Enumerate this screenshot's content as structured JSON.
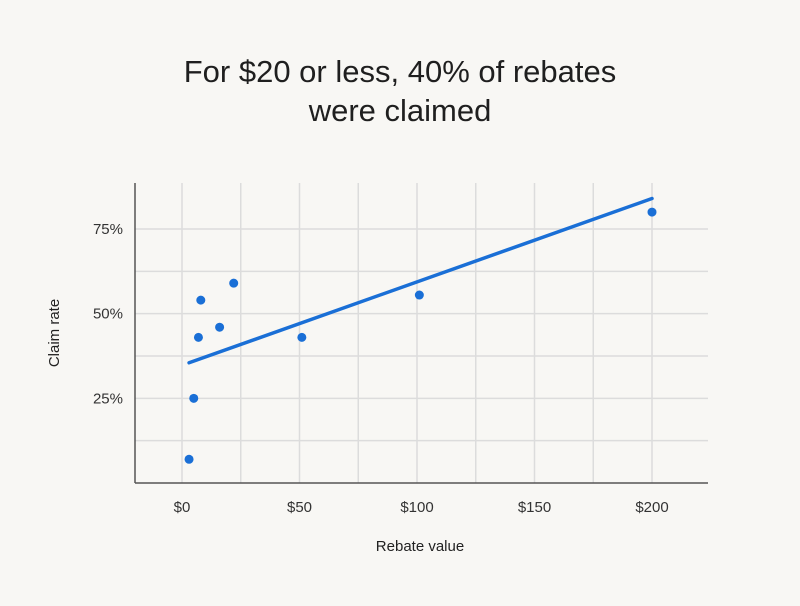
{
  "title_lines": [
    "For $20 or less, 40% of rebates",
    "were claimed"
  ],
  "chart_data": {
    "type": "scatter",
    "title": "For $20 or less, 40% of rebates were claimed",
    "xlabel": "Rebate value",
    "ylabel": "Claim rate",
    "xlim": [
      -20,
      225
    ],
    "ylim": [
      0,
      90
    ],
    "x_ticks": [
      0,
      50,
      100,
      150,
      200
    ],
    "x_tick_labels": [
      "$0",
      "$50",
      "$100",
      "$150",
      "$200"
    ],
    "y_ticks": [
      25,
      50,
      75
    ],
    "y_tick_labels": [
      "25%",
      "50%",
      "75%"
    ],
    "x_gridlines": [
      0,
      25,
      50,
      75,
      100,
      125,
      150,
      175,
      200
    ],
    "y_gridlines": [
      12.5,
      25,
      37.5,
      50,
      62.5,
      75
    ],
    "grid": true,
    "series": [
      {
        "points": [
          {
            "x": 3,
            "y": 7
          },
          {
            "x": 5,
            "y": 25
          },
          {
            "x": 7,
            "y": 43
          },
          {
            "x": 8,
            "y": 54
          },
          {
            "x": 16,
            "y": 46
          },
          {
            "x": 22,
            "y": 59
          },
          {
            "x": 51,
            "y": 43
          },
          {
            "x": 101,
            "y": 55.5
          },
          {
            "x": 200,
            "y": 80
          }
        ]
      }
    ],
    "trendline": {
      "x": [
        3,
        200
      ],
      "y": [
        35.5,
        84
      ]
    },
    "colors": {
      "points": "#1a6fd6",
      "trendline": "#1a6fd6",
      "grid": "#dcdcdc",
      "axis": "#555555"
    }
  }
}
